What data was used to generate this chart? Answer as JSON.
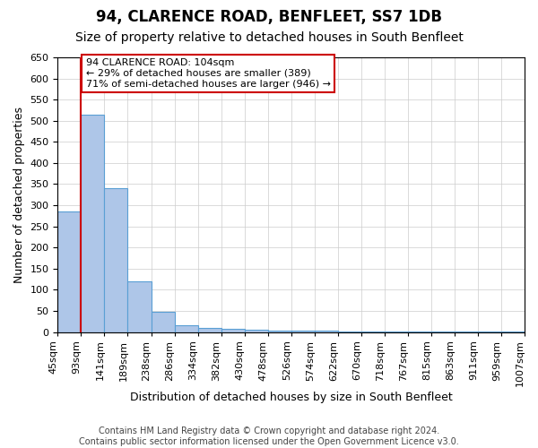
{
  "title": "94, CLARENCE ROAD, BENFLEET, SS7 1DB",
  "subtitle": "Size of property relative to detached houses in South Benfleet",
  "xlabel": "Distribution of detached houses by size in South Benfleet",
  "ylabel": "Number of detached properties",
  "categories": [
    "45sqm",
    "93sqm",
    "141sqm",
    "189sqm",
    "238sqm",
    "286sqm",
    "334sqm",
    "382sqm",
    "430sqm",
    "478sqm",
    "526sqm",
    "574sqm",
    "622sqm",
    "670sqm",
    "718sqm",
    "767sqm",
    "815sqm",
    "863sqm",
    "911sqm",
    "959sqm",
    "1007sqm"
  ],
  "bar_values": [
    285,
    515,
    340,
    120,
    48,
    15,
    10,
    8,
    5,
    4,
    3,
    3,
    2,
    2,
    2,
    1,
    1,
    1,
    1,
    1
  ],
  "bar_color": "#aec6e8",
  "bar_edge_color": "#5a9fd4",
  "red_line_x": 1,
  "annotation_text": "94 CLARENCE ROAD: 104sqm\n← 29% of detached houses are smaller (389)\n71% of semi-detached houses are larger (946) →",
  "annotation_box_color": "#ffffff",
  "annotation_box_edge_color": "#cc0000",
  "ylim": [
    0,
    650
  ],
  "yticks": [
    0,
    50,
    100,
    150,
    200,
    250,
    300,
    350,
    400,
    450,
    500,
    550,
    600,
    650
  ],
  "background_color": "#ffffff",
  "grid_color": "#cccccc",
  "footer": "Contains HM Land Registry data © Crown copyright and database right 2024.\nContains public sector information licensed under the Open Government Licence v3.0.",
  "title_fontsize": 12,
  "subtitle_fontsize": 10,
  "xlabel_fontsize": 9,
  "ylabel_fontsize": 9,
  "tick_fontsize": 8,
  "annotation_fontsize": 8,
  "footer_fontsize": 7
}
